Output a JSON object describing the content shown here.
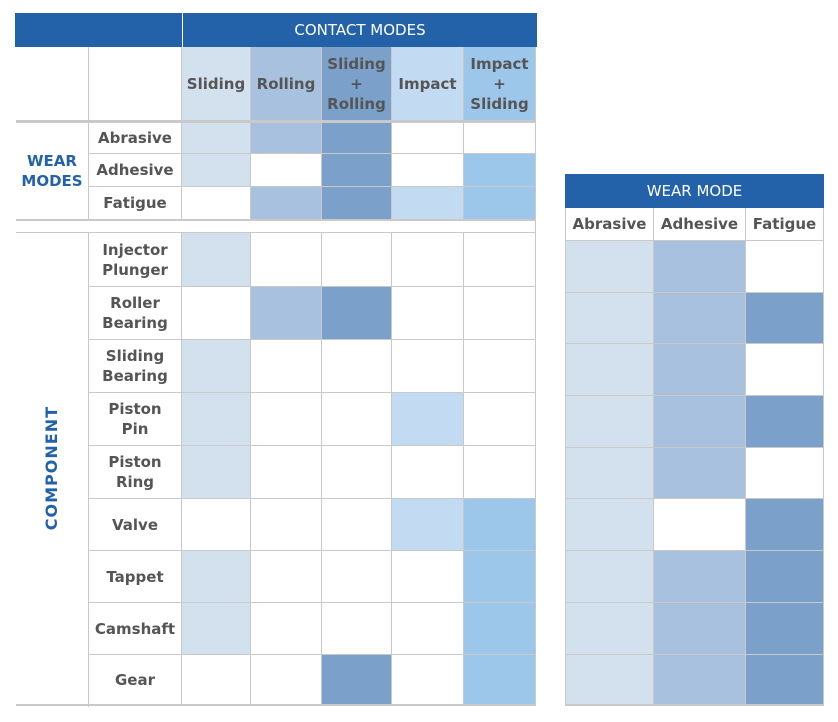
{
  "chart_data": [
    {
      "type": "heatmap",
      "title": "CONTACT MODES",
      "section": "WEAR MODES",
      "categories": [
        "Sliding",
        "Rolling",
        "Sliding + Rolling",
        "Impact",
        "Impact + Sliding"
      ],
      "rows": [
        "Abrasive",
        "Adhesive",
        "Fatigue"
      ],
      "values": [
        [
          1,
          1,
          1,
          0,
          0
        ],
        [
          1,
          0,
          1,
          0,
          1
        ],
        [
          0,
          1,
          1,
          1,
          1
        ]
      ]
    },
    {
      "type": "heatmap",
      "title": "CONTACT MODES",
      "section": "COMPONENT",
      "categories": [
        "Sliding",
        "Rolling",
        "Sliding + Rolling",
        "Impact",
        "Impact + Sliding"
      ],
      "rows": [
        "Injector Plunger",
        "Roller Bearing",
        "Sliding Bearing",
        "Piston Pin",
        "Piston Ring",
        "Valve",
        "Tappet",
        "Camshaft",
        "Gear"
      ],
      "values": [
        [
          1,
          0,
          0,
          0,
          0
        ],
        [
          0,
          1,
          1,
          0,
          0
        ],
        [
          1,
          0,
          0,
          0,
          0
        ],
        [
          1,
          0,
          0,
          1,
          0
        ],
        [
          1,
          0,
          0,
          0,
          0
        ],
        [
          0,
          0,
          0,
          1,
          1
        ],
        [
          1,
          0,
          0,
          0,
          1
        ],
        [
          1,
          0,
          0,
          0,
          1
        ],
        [
          0,
          0,
          1,
          0,
          1
        ]
      ]
    },
    {
      "type": "heatmap",
      "title": "WEAR MODE",
      "categories": [
        "Abrasive",
        "Adhesive",
        "Fatigue"
      ],
      "rows": [
        "Injector Plunger",
        "Roller Bearing",
        "Sliding Bearing",
        "Piston Pin",
        "Piston Ring",
        "Valve",
        "Tappet",
        "Camshaft",
        "Gear"
      ],
      "values": [
        [
          1,
          1,
          0
        ],
        [
          1,
          1,
          1
        ],
        [
          1,
          1,
          0
        ],
        [
          1,
          1,
          1
        ],
        [
          1,
          1,
          0
        ],
        [
          1,
          0,
          1
        ],
        [
          1,
          1,
          1
        ],
        [
          1,
          1,
          1
        ],
        [
          1,
          1,
          1
        ]
      ]
    }
  ],
  "left_table": {
    "title": "CONTACT MODES",
    "columns": [
      "Sliding",
      "Rolling",
      "Sliding\n+\nRolling",
      "Impact",
      "Impact\n+\nSliding"
    ],
    "wear_modes_label": "WEAR\nMODES",
    "component_label": "COMPONENT",
    "wear_rows": [
      "Abrasive",
      "Adhesive",
      "Fatigue"
    ],
    "component_rows": [
      "Injector\nPlunger",
      "Roller\nBearing",
      "Sliding\nBearing",
      "Piston\nPin",
      "Piston\nRing",
      "Valve",
      "Tappet",
      "Camshaft",
      "Gear"
    ]
  },
  "right_table": {
    "title": "WEAR MODE",
    "columns": [
      "Abrasive",
      "Adhesive",
      "Fatigue"
    ]
  },
  "colors": {
    "header": "#2362a9",
    "sliding": "#d3e0ee",
    "rolling": "#a8c1df",
    "sliding_rolling": "#7ba1cb",
    "impact": "#c2dbf2",
    "impact_sliding": "#9cc6ea",
    "abrasive": "#d3e0ee",
    "adhesive": "#a8c1df",
    "fatigue": "#7ba1cb"
  }
}
